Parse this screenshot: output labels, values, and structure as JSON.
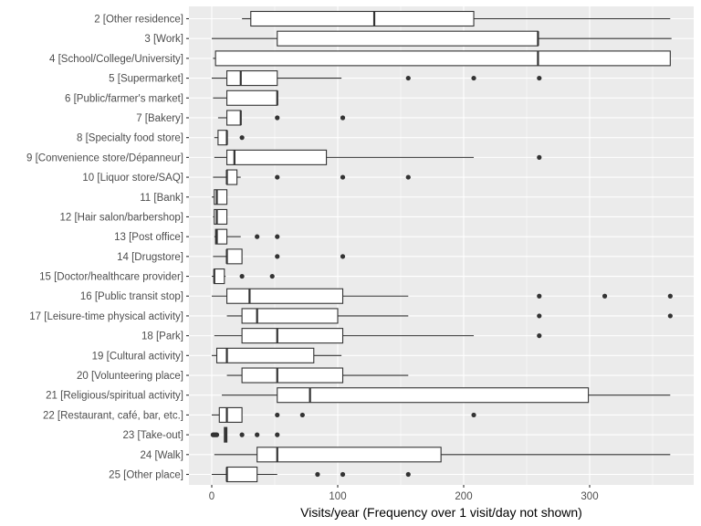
{
  "chart_data": {
    "type": "boxplot",
    "orientation": "horizontal",
    "title": "",
    "xlabel": "Visits/year (Frequency over 1 visit/day not shown)",
    "ylabel": "",
    "xlim": [
      -18,
      382
    ],
    "x_ticks": [
      0,
      100,
      200,
      300
    ],
    "x_tick_labels": [
      "0",
      "100",
      "200",
      "300"
    ],
    "x_minor_grid": [
      50,
      150,
      250,
      350
    ],
    "grid": true,
    "legend": "none",
    "categories": [
      "2 [Other residence]",
      "3 [Work]",
      "4 [School/College/University]",
      "5 [Supermarket]",
      "6 [Public/farmer's market]",
      "7 [Bakery]",
      "8 [Specialty food store]",
      "9 [Convenience store/Dépanneur]",
      "10 [Liquor store/SAQ]",
      "11 [Bank]",
      "12 [Hair salon/barbershop]",
      "13 [Post office]",
      "14 [Drugstore]",
      "15 [Doctor/healthcare provider]",
      "16 [Public transit stop]",
      "17 [Leisure-time physical activity]",
      "18 [Park]",
      "19 [Cultural activity]",
      "20 [Volunteering place]",
      "21 [Religious/spiritual activity]",
      "22 [Restaurant, café, bar, etc.]",
      "23 [Take-out]",
      "24 [Walk]",
      "25 [Other place]"
    ],
    "boxes": [
      {
        "lo": 24,
        "q1": 31,
        "median": 129,
        "q3": 208,
        "hi": 364,
        "outliers": []
      },
      {
        "lo": 0,
        "q1": 52,
        "median": 259,
        "q3": 259,
        "hi": 365,
        "outliers": []
      },
      {
        "lo": 1,
        "q1": 3,
        "median": 259,
        "q3": 364,
        "hi": 364,
        "outliers": []
      },
      {
        "lo": 0,
        "q1": 12,
        "median": 23,
        "q3": 52,
        "hi": 103,
        "outliers": [
          156,
          208,
          260
        ]
      },
      {
        "lo": 1,
        "q1": 12,
        "median": 52,
        "q3": 52,
        "hi": 52,
        "outliers": []
      },
      {
        "lo": 5,
        "q1": 12,
        "median": 23,
        "q3": 23,
        "hi": 23,
        "outliers": [
          52,
          104
        ]
      },
      {
        "lo": 2,
        "q1": 5,
        "median": 12,
        "q3": 12,
        "hi": 12,
        "outliers": [
          24
        ]
      },
      {
        "lo": 2,
        "q1": 12,
        "median": 18,
        "q3": 91,
        "hi": 208,
        "outliers": [
          260
        ]
      },
      {
        "lo": 1,
        "q1": 12,
        "median": 12,
        "q3": 20,
        "hi": 23,
        "outliers": [
          52,
          104,
          156
        ]
      },
      {
        "lo": 0,
        "q1": 2,
        "median": 4,
        "q3": 12,
        "hi": 12,
        "outliers": []
      },
      {
        "lo": 1,
        "q1": 2,
        "median": 4,
        "q3": 12,
        "hi": 12,
        "outliers": []
      },
      {
        "lo": 2,
        "q1": 3,
        "median": 4,
        "q3": 12,
        "hi": 23,
        "outliers": [
          36,
          52
        ]
      },
      {
        "lo": 1,
        "q1": 12,
        "median": 12,
        "q3": 24,
        "hi": 24,
        "outliers": [
          52,
          104
        ]
      },
      {
        "lo": 0,
        "q1": 2,
        "median": 2,
        "q3": 10,
        "hi": 11,
        "outliers": [
          24,
          48
        ]
      },
      {
        "lo": 0,
        "q1": 12,
        "median": 30,
        "q3": 104,
        "hi": 156,
        "outliers": [
          260,
          312,
          364
        ]
      },
      {
        "lo": 12,
        "q1": 24,
        "median": 36,
        "q3": 100,
        "hi": 156,
        "outliers": [
          260,
          364
        ]
      },
      {
        "lo": 2,
        "q1": 24,
        "median": 52,
        "q3": 104,
        "hi": 208,
        "outliers": [
          260
        ]
      },
      {
        "lo": 0,
        "q1": 4,
        "median": 12,
        "q3": 81,
        "hi": 103,
        "outliers": []
      },
      {
        "lo": 12,
        "q1": 24,
        "median": 52,
        "q3": 104,
        "hi": 156,
        "outliers": []
      },
      {
        "lo": 8,
        "q1": 52,
        "median": 78,
        "q3": 299,
        "hi": 364,
        "outliers": []
      },
      {
        "lo": 0,
        "q1": 6,
        "median": 12,
        "q3": 24,
        "hi": 24,
        "outliers": [
          52,
          72,
          208
        ]
      },
      {
        "lo": 10,
        "q1": 10,
        "median": 11,
        "q3": 12,
        "hi": 12,
        "outliers": [
          1,
          2,
          3,
          4,
          24,
          36,
          52
        ]
      },
      {
        "lo": 2,
        "q1": 36,
        "median": 52,
        "q3": 182,
        "hi": 364,
        "outliers": []
      },
      {
        "lo": 0,
        "q1": 12,
        "median": 12,
        "q3": 36,
        "hi": 52,
        "outliers": [
          84,
          104,
          156
        ]
      }
    ]
  },
  "colors": {
    "panel_background": "#ebebeb",
    "grid": "#ffffff",
    "box_fill": "#ffffff",
    "box_stroke": "#333333",
    "outlier": "#333333",
    "tick_label": "#4d4d4d",
    "axis_title": "#000000"
  }
}
